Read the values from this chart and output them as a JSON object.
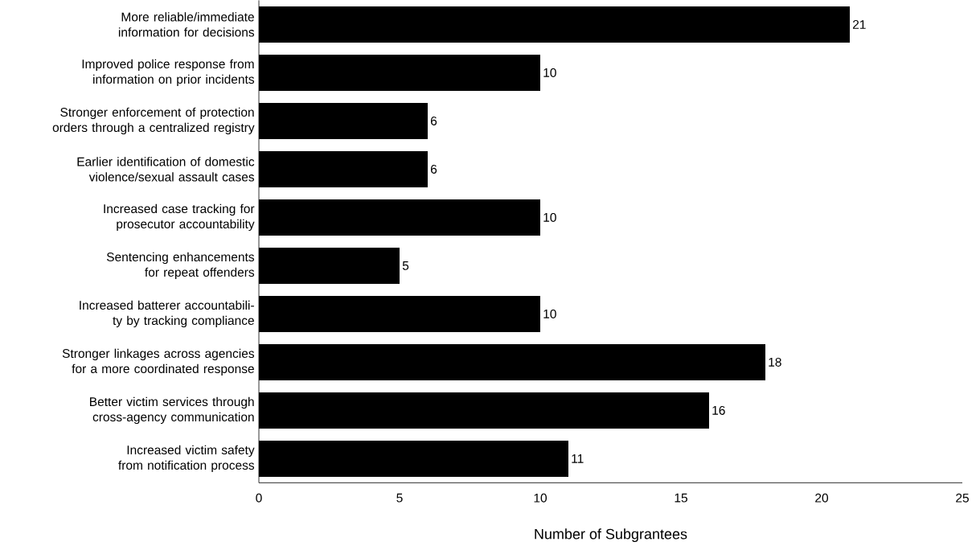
{
  "chart_data": {
    "type": "bar",
    "orientation": "horizontal",
    "xlabel": "Number of Subgrantees",
    "categories": [
      "More reliable/immediate information for decisions",
      "Improved police response from information on prior incidents",
      "Stronger enforcement of protection orders through a centralized registry",
      "Earlier identification of domestic violence/sexual assault cases",
      "Increased case tracking for prosecutor accountability",
      "Sentencing enhancements for repeat offenders",
      "Increased batterer accountabili-ty by tracking compliance",
      "Stronger linkages across agencies for a more coordinated response",
      "Better victim services through cross-agency communication",
      "Increased victim safety from notification process"
    ],
    "values": [
      21,
      10,
      6,
      6,
      10,
      5,
      10,
      18,
      16,
      11
    ],
    "color": "#000000",
    "xlim": [
      0,
      25
    ],
    "xticks": [
      0,
      5,
      10,
      15,
      20,
      25
    ],
    "data_labels": true,
    "grid": false,
    "legend": false
  }
}
